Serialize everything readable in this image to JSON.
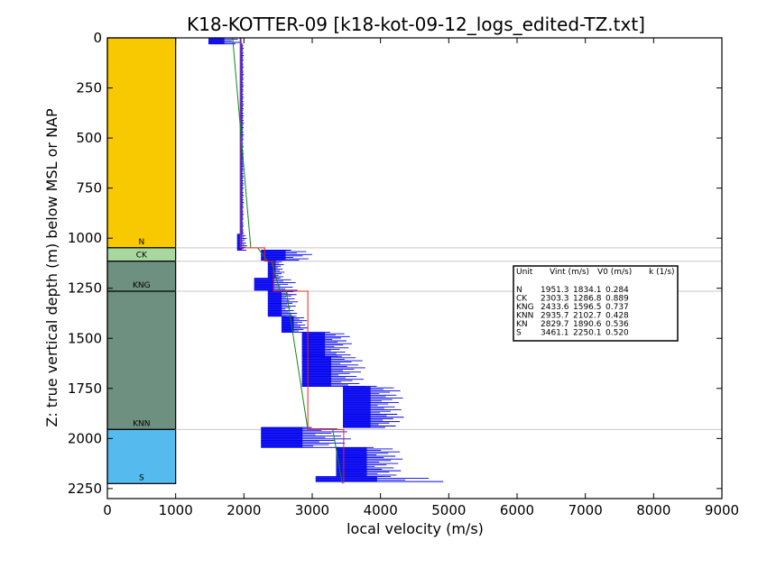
{
  "chart_data": {
    "type": "line",
    "title": "K18-KOTTER-09 [k18-kot-09-12_logs_edited-TZ.txt]",
    "xlabel": "local velocity (m/s)",
    "ylabel": "Z: true vertical depth (m) below MSL or NAP",
    "xlim": [
      0,
      9000
    ],
    "ylim": [
      2300,
      0
    ],
    "xticks": [
      "0",
      "1000",
      "2000",
      "3000",
      "4000",
      "5000",
      "6000",
      "7000",
      "8000",
      "9000"
    ],
    "yticks": [
      "0",
      "250",
      "500",
      "750",
      "1000",
      "1250",
      "1500",
      "1750",
      "2000",
      "2250"
    ],
    "grid": false,
    "units": [
      {
        "name": "N",
        "top": 0,
        "bottom": 1048,
        "color": "#f9c900"
      },
      {
        "name": "CK",
        "top": 1048,
        "bottom": 1115,
        "color": "#a8d8a0"
      },
      {
        "name": "KNG",
        "top": 1115,
        "bottom": 1265,
        "color": "#6e9080"
      },
      {
        "name": "KNN",
        "top": 1265,
        "bottom": 1955,
        "color": "#6e9080"
      },
      {
        "name": "S",
        "top": 1955,
        "bottom": 2225,
        "color": "#55bbee"
      }
    ],
    "interval_velocity_steps": [
      {
        "unit": "N",
        "top": 0,
        "bottom": 1048,
        "vint": 1951.3
      },
      {
        "unit": "CK",
        "top": 1048,
        "bottom": 1115,
        "vint": 2303.3
      },
      {
        "unit": "KNG",
        "top": 1115,
        "bottom": 1265,
        "vint": 2433.6
      },
      {
        "unit": "KNN",
        "top": 1265,
        "bottom": 1955,
        "vint": 2935.7
      },
      {
        "unit": "S",
        "top": 1955,
        "bottom": 2225,
        "vint": 3461.1
      }
    ],
    "linear_v0k_model": {
      "segments": [
        {
          "z": [
            0,
            1048
          ],
          "v": [
            1834.1,
            2100
          ]
        },
        {
          "z": [
            1048,
            1115
          ],
          "v": [
            2200,
            2350
          ]
        },
        {
          "z": [
            1115,
            1265
          ],
          "v": [
            2400,
            2530
          ]
        },
        {
          "z": [
            1265,
            1955
          ],
          "v": [
            2620,
            2935
          ]
        },
        {
          "z": [
            1955,
            2225
          ],
          "v": [
            3300,
            3440
          ]
        }
      ]
    },
    "log_velocity_bands": [
      {
        "z": [
          0,
          30
        ],
        "v": [
          1480,
          2000
        ]
      },
      {
        "z": [
          30,
          980
        ],
        "v": [
          1950,
          2000
        ]
      },
      {
        "z": [
          980,
          1060
        ],
        "v": [
          1900,
          2050
        ]
      },
      {
        "z": [
          1060,
          1110
        ],
        "v": [
          2250,
          3050
        ]
      },
      {
        "z": [
          1110,
          1200
        ],
        "v": [
          2350,
          2600
        ]
      },
      {
        "z": [
          1200,
          1260
        ],
        "v": [
          2150,
          2800
        ]
      },
      {
        "z": [
          1260,
          1390
        ],
        "v": [
          2350,
          2800
        ]
      },
      {
        "z": [
          1390,
          1470
        ],
        "v": [
          2550,
          2950
        ]
      },
      {
        "z": [
          1470,
          1590
        ],
        "v": [
          2850,
          3600
        ]
      },
      {
        "z": [
          1590,
          1740
        ],
        "v": [
          2850,
          3800
        ]
      },
      {
        "z": [
          1740,
          1945
        ],
        "v": [
          3450,
          4350
        ]
      },
      {
        "z": [
          1945,
          2045
        ],
        "v": [
          2250,
          3600
        ]
      },
      {
        "z": [
          2045,
          2190
        ],
        "v": [
          3350,
          4350
        ]
      },
      {
        "z": [
          2190,
          2215
        ],
        "v": [
          3050,
          5050
        ]
      }
    ],
    "table": {
      "header": [
        "Unit",
        "Vint (m/s)",
        "V0 (m/s)",
        "k (1/s)"
      ],
      "rows": [
        [
          "N",
          "1951.3",
          "1834.1",
          "0.284"
        ],
        [
          "CK",
          "2303.3",
          "1286.8",
          "0.889"
        ],
        [
          "KNG",
          "2433.6",
          "1596.5",
          "0.737"
        ],
        [
          "KNN",
          "2935.7",
          "2102.7",
          "0.428"
        ],
        [
          "KN",
          "2829.7",
          "1890.6",
          "0.536"
        ],
        [
          "S",
          "3461.1",
          "2250.1",
          "0.520"
        ]
      ]
    }
  }
}
